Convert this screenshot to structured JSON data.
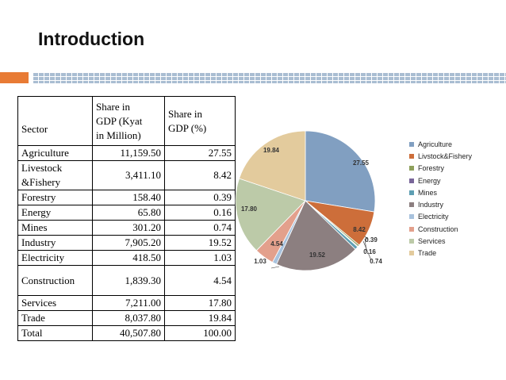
{
  "slide": {
    "title": "Introduction"
  },
  "table": {
    "headers": [
      "Sector",
      "Share in\nGDP (Kyat\nin Million)",
      "Share in\nGDP (%)"
    ],
    "rows": [
      {
        "sector": "Agriculture",
        "gdp": "11,159.50",
        "pct": "27.55"
      },
      {
        "sector": "Livestock\n&Fishery",
        "gdp": "3,411.10",
        "pct": "8.42"
      },
      {
        "sector": "Forestry",
        "gdp": "158.40",
        "pct": "0.39"
      },
      {
        "sector": "Energy",
        "gdp": "65.80",
        "pct": "0.16"
      },
      {
        "sector": "Mines",
        "gdp": "301.20",
        "pct": "0.74"
      },
      {
        "sector": "Industry",
        "gdp": "7,905.20",
        "pct": "19.52"
      },
      {
        "sector": "Electricity",
        "gdp": "418.50",
        "pct": "1.03"
      },
      {
        "sector": "Construction",
        "gdp": "1,839.30",
        "pct": "4.54"
      },
      {
        "sector": "Services",
        "gdp": "7,211.00",
        "pct": "17.80"
      },
      {
        "sector": "Trade",
        "gdp": "8,037.80",
        "pct": "19.84"
      },
      {
        "sector": "Total",
        "gdp": "40,507.80",
        "pct": "100.00"
      }
    ]
  },
  "chart_data": {
    "type": "pie",
    "categories": [
      "Agriculture",
      "Livstock&Fishery",
      "Forestry",
      "Energy",
      "Mines",
      "Industry",
      "Electricity",
      "Construction",
      "Services",
      "Trade"
    ],
    "values": [
      27.55,
      8.42,
      0.39,
      0.16,
      0.74,
      19.52,
      1.03,
      4.54,
      17.8,
      19.84
    ],
    "labels": [
      "27.55",
      "8.42",
      "0.39",
      "0.16",
      "0.74",
      "19.52",
      "1.03",
      "4.54",
      "17.80",
      "19.84"
    ],
    "colors": [
      "#819fc1",
      "#cd6e3a",
      "#8ea05c",
      "#796699",
      "#5e9fb3",
      "#8c7f80",
      "#a8c2dd",
      "#e3a08c",
      "#bccaa8",
      "#e3cb9d"
    ],
    "legend_position": "right",
    "title": ""
  }
}
